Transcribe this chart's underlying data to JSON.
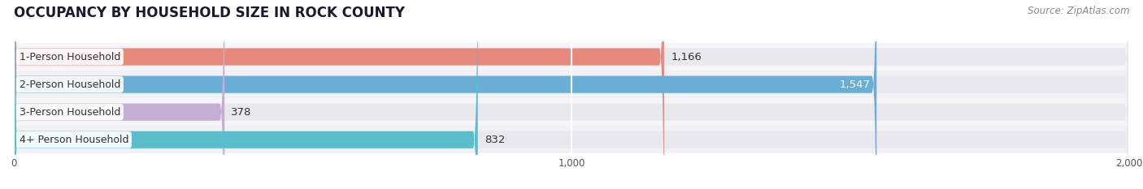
{
  "title": "OCCUPANCY BY HOUSEHOLD SIZE IN ROCK COUNTY",
  "source": "Source: ZipAtlas.com",
  "categories": [
    "1-Person Household",
    "2-Person Household",
    "3-Person Household",
    "4+ Person Household"
  ],
  "values": [
    1166,
    1547,
    378,
    832
  ],
  "bar_colors": [
    "#e8897e",
    "#6aadd5",
    "#c4aed4",
    "#5bbdcc"
  ],
  "bar_labels": [
    "1,166",
    "1,547",
    "378",
    "832"
  ],
  "label_inside": [
    false,
    true,
    false,
    false
  ],
  "xlim": [
    0,
    2000
  ],
  "xticks": [
    0,
    1000,
    2000
  ],
  "xtick_labels": [
    "0",
    "1,000",
    "2,000"
  ],
  "background_color": "#ffffff",
  "bar_bg_color": "#e8e8ee",
  "title_fontsize": 12,
  "source_fontsize": 8.5,
  "label_fontsize": 9.5,
  "cat_fontsize": 9,
  "bar_height": 0.62,
  "row_bg_colors": [
    "#f5f5f8",
    "#f0f0f5",
    "#f5f5f8",
    "#f0f0f5"
  ]
}
